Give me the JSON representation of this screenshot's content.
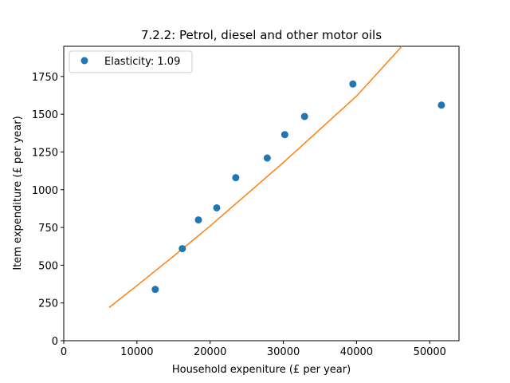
{
  "chart_data": {
    "type": "scatter",
    "title": "7.2.2: Petrol, diesel and other motor oils",
    "xlabel": "Household expeniture (£ per year)",
    "ylabel": "Item expenditure (£ per year)",
    "xlim": [
      0,
      54000
    ],
    "ylim": [
      0,
      1950
    ],
    "xticks": [
      0,
      10000,
      20000,
      30000,
      40000,
      50000
    ],
    "xtick_labels": [
      "0",
      "10000",
      "20000",
      "30000",
      "40000",
      "50000"
    ],
    "yticks": [
      0,
      250,
      500,
      750,
      1000,
      1250,
      1500,
      1750
    ],
    "ytick_labels": [
      "0",
      "250",
      "500",
      "750",
      "1000",
      "1250",
      "1500",
      "1750"
    ],
    "grid": false,
    "legend_position": "top-left",
    "series": [
      {
        "name": "Elasticity: 1.09",
        "kind": "scatter",
        "color": "#1f77b4",
        "x": [
          12500,
          16200,
          18400,
          20900,
          23500,
          27800,
          30200,
          32900,
          39500,
          51600
        ],
        "y": [
          340,
          610,
          800,
          880,
          1080,
          1210,
          1365,
          1485,
          1700,
          1560
        ]
      },
      {
        "kind": "line",
        "color": "#ff7f0e",
        "x": [
          6200,
          10000,
          15000,
          20000,
          25000,
          30000,
          35000,
          40000,
          46200
        ],
        "y": [
          220,
          365,
          560,
          760,
          970,
          1180,
          1400,
          1620,
          1950
        ]
      }
    ]
  }
}
